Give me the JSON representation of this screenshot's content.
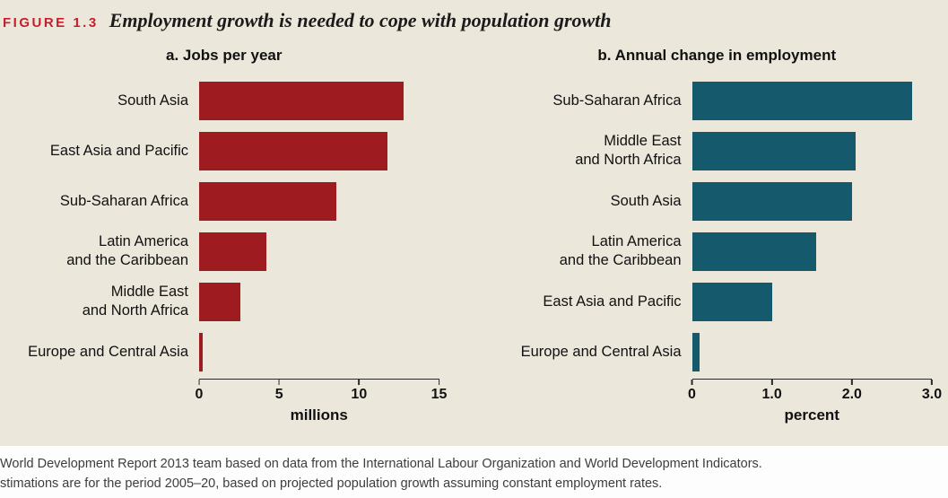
{
  "header": {
    "figure_label": "FIGURE 1.3",
    "title": "Employment growth is needed to cope with population growth"
  },
  "chart_data": [
    {
      "type": "bar",
      "orientation": "horizontal",
      "title": "a. Jobs per year",
      "categories": [
        "South Asia",
        "East Asia and Pacific",
        "Sub-Saharan Africa",
        "Latin America\nand the Caribbean",
        "Middle East\nand North Africa",
        "Europe and Central Asia"
      ],
      "values": [
        12.8,
        11.8,
        8.6,
        4.2,
        2.6,
        0.2
      ],
      "xlabel": "millions",
      "xlim": [
        0,
        15
      ],
      "xticks": [
        "0",
        "5",
        "10",
        "15"
      ],
      "xtick_values": [
        0,
        5,
        10,
        15
      ],
      "bar_color": "#9e1b1f",
      "grid": false,
      "legend": false
    },
    {
      "type": "bar",
      "orientation": "horizontal",
      "title": "b. Annual change in employment",
      "categories": [
        "Sub-Saharan Africa",
        "Middle East\nand North Africa",
        "South Asia",
        "Latin America\nand the Caribbean",
        "East Asia and Pacific",
        "Europe and Central Asia"
      ],
      "values": [
        2.75,
        2.05,
        2.0,
        1.55,
        1.0,
        0.1
      ],
      "xlabel": "percent",
      "xlim": [
        0,
        3
      ],
      "xticks": [
        "0",
        "1.0",
        "2.0",
        "3.0"
      ],
      "xtick_values": [
        0,
        1,
        2,
        3
      ],
      "bar_color": "#15596d",
      "grid": false,
      "legend": false
    }
  ],
  "footer": {
    "line1": "World Development Report 2013 team based on data from the International Labour Organization and World Development Indicators.",
    "line2": "stimations are for the period 2005–20, based on projected population growth assuming constant employment rates."
  },
  "colors": {
    "background": "#ece7db",
    "figure_label_red": "#c4202e",
    "bar_red": "#9e1b1f",
    "bar_teal": "#15596d",
    "footer_background": "#fdfdfd"
  }
}
